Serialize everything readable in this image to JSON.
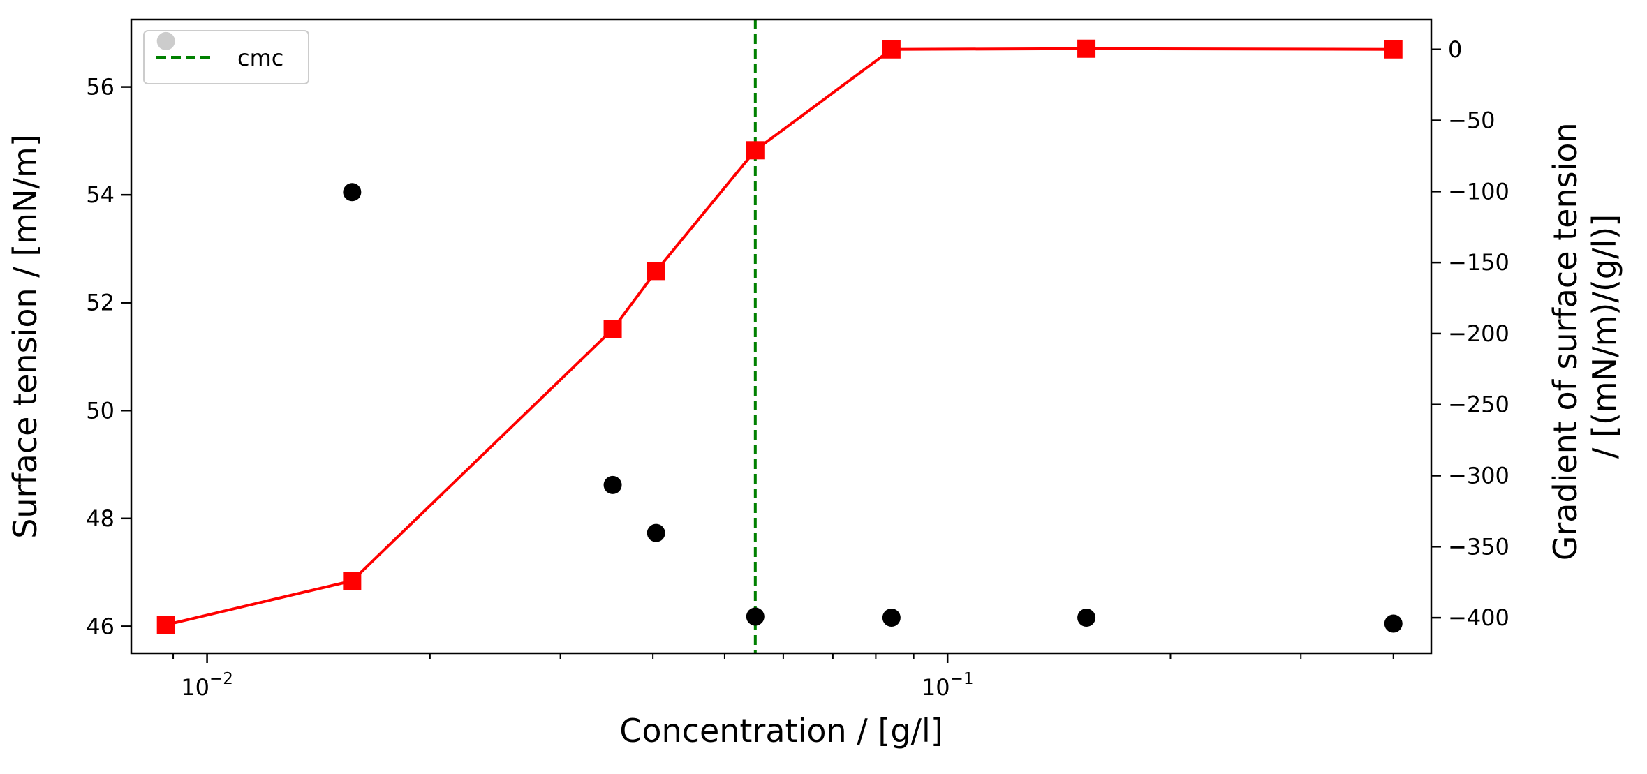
{
  "chart_data": {
    "type": "scatter",
    "x_scale": "log",
    "x": [
      0.0088,
      0.0157,
      0.0353,
      0.0404,
      0.055,
      0.084,
      0.154,
      0.4
    ],
    "xlim": [
      0.0079,
      0.45
    ],
    "x_ticks_major": [
      0.01,
      0.1
    ],
    "x_tick_labels": [
      {
        "base": "10",
        "exp": "−2"
      },
      {
        "base": "10",
        "exp": "−1"
      }
    ],
    "x_ticks_minor": [
      0.009,
      0.02,
      0.03,
      0.04,
      0.05,
      0.06,
      0.07,
      0.08,
      0.09,
      0.2,
      0.3,
      0.4
    ],
    "xlabel": "Concentration / [g/l]",
    "y_left": {
      "label": "Surface tension / [mN/m]",
      "lim": [
        45.5,
        57.25
      ],
      "ticks": [
        46,
        48,
        50,
        52,
        54,
        56
      ],
      "tick_labels": [
        "46",
        "48",
        "50",
        "52",
        "54",
        "56"
      ]
    },
    "y_right": {
      "label_lines": [
        "Gradient of surface tension",
        "/ [(mN/m)/(g/l)]"
      ],
      "lim": [
        -425,
        21
      ],
      "ticks": [
        0,
        -50,
        -100,
        -150,
        -200,
        -250,
        -300,
        -350,
        -400
      ],
      "tick_labels": [
        "0",
        "−50",
        "−100",
        "−150",
        "−200",
        "−250",
        "−300",
        "−350",
        "−400"
      ]
    },
    "series": [
      {
        "axis": "left",
        "marker": "circle",
        "color": "#000000",
        "values": [
          56.85,
          54.05,
          48.62,
          47.73,
          46.18,
          46.16,
          46.16,
          46.05
        ]
      },
      {
        "axis": "right",
        "marker": "square",
        "line": true,
        "color": "#ff0000",
        "values": [
          -405,
          -374,
          -197,
          -156,
          -71,
          0,
          0.5,
          0
        ]
      }
    ],
    "vline": {
      "x": 0.055,
      "label": "cmc",
      "color": "#008000",
      "style": "dashed"
    },
    "legend": {
      "placement": "top-left",
      "entries": [
        "cmc"
      ]
    }
  }
}
